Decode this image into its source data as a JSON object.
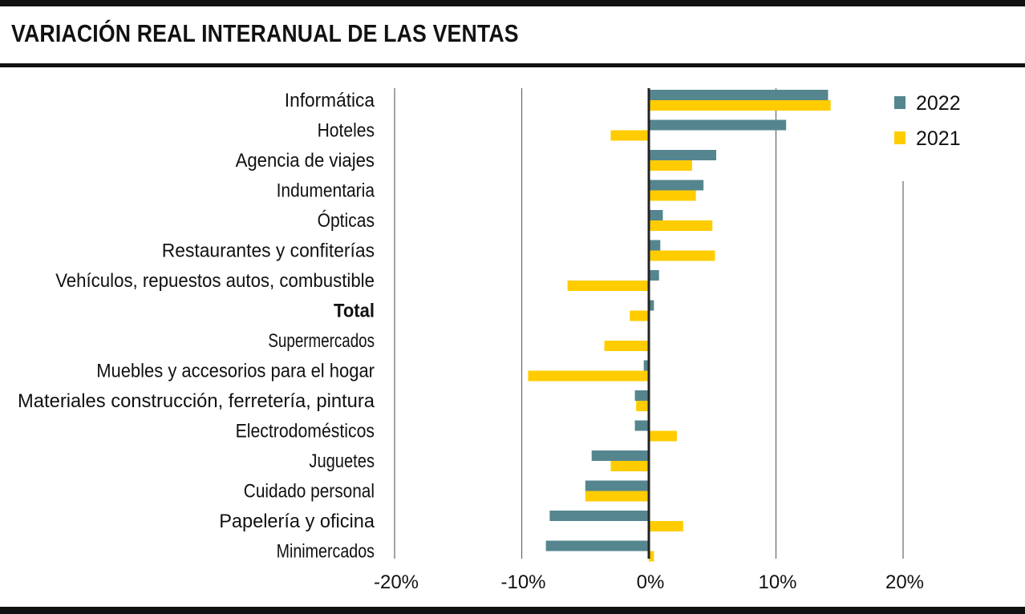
{
  "title": "VARIACIÓN REAL INTERANUAL DE LAS VENTAS",
  "colors": {
    "series_2022": "#55868f",
    "series_2021": "#ffcc00",
    "zero_line": "#222222",
    "grid": "#666666"
  },
  "chart_data": {
    "type": "bar",
    "orientation": "horizontal",
    "title": "VARIACIÓN REAL INTERANUAL DE LAS VENTAS",
    "xlabel": "",
    "ylabel": "",
    "xlim": [
      -20,
      20
    ],
    "x_ticks": [
      -20,
      -10,
      0,
      10,
      20
    ],
    "x_tick_labels": [
      "-20%",
      "-10%",
      "0%",
      "10%",
      "20%"
    ],
    "grid": true,
    "legend_position": "top-right",
    "categories": [
      "Informática",
      "Hoteles",
      "Agencia de viajes",
      "Indumentaria",
      "Ópticas",
      "Restaurantes y confiterías",
      "Vehículos, repuestos autos, combustible",
      "Total",
      "Supermercados",
      "Muebles y accesorios para el hogar",
      "Materiales construcción, ferretería, pintura",
      "Electrodomésticos",
      "Juguetes",
      "Cuidado personal",
      "Papelería y oficina",
      "Minimercados"
    ],
    "bold_categories": [
      "Total"
    ],
    "series": [
      {
        "name": "2022",
        "values": [
          14.1,
          10.8,
          5.3,
          4.3,
          1.1,
          0.9,
          0.8,
          0.4,
          0.0,
          -0.4,
          -1.1,
          -1.1,
          -4.5,
          -5.0,
          -7.8,
          -8.1
        ]
      },
      {
        "name": "2021",
        "values": [
          14.3,
          -3.0,
          3.4,
          3.7,
          5.0,
          5.2,
          -6.4,
          -1.5,
          -3.5,
          -9.5,
          -1.0,
          2.2,
          -3.0,
          -5.0,
          2.7,
          0.4
        ]
      }
    ]
  }
}
